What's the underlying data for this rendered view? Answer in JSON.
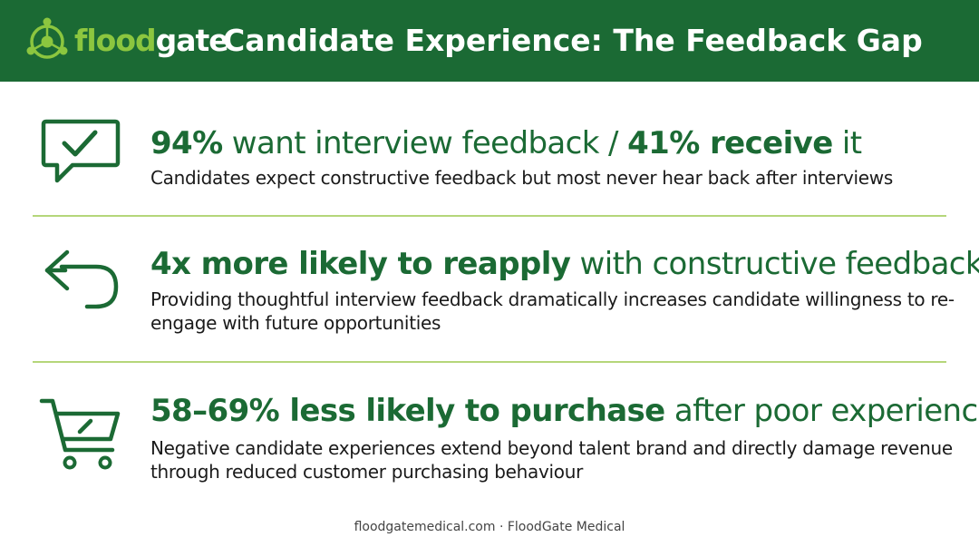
{
  "brand": {
    "logo_part1": "flood",
    "logo_part2": "gate",
    "primary_color": "#1b6a34",
    "accent_color": "#8cc63f"
  },
  "header": {
    "title": "Candidate Experience: The Feedback Gap"
  },
  "stats": [
    {
      "icon": "chat-check-icon",
      "heading_bold_1": "94%",
      "heading_light_1": " want interview feedback / ",
      "heading_bold_2": "41% receive",
      "heading_light_2": " it",
      "description": "Candidates expect constructive feedback but most never hear back after interviews"
    },
    {
      "icon": "return-arrow-icon",
      "heading_bold_1": "4x more likely to reapply",
      "heading_light_1": " with constructive feedback",
      "description": "Providing thoughtful interview feedback dramatically increases candidate willingness to re-engage with future opportunities"
    },
    {
      "icon": "shopping-cart-icon",
      "heading_bold_1": "58–69% less likely to purchase",
      "heading_light_1": " after poor experience",
      "description": "Negative candidate experiences extend beyond talent brand and directly damage revenue through reduced customer purchasing behaviour"
    }
  ],
  "footer": {
    "text": "floodgatemedical.com · FloodGate Medical"
  }
}
